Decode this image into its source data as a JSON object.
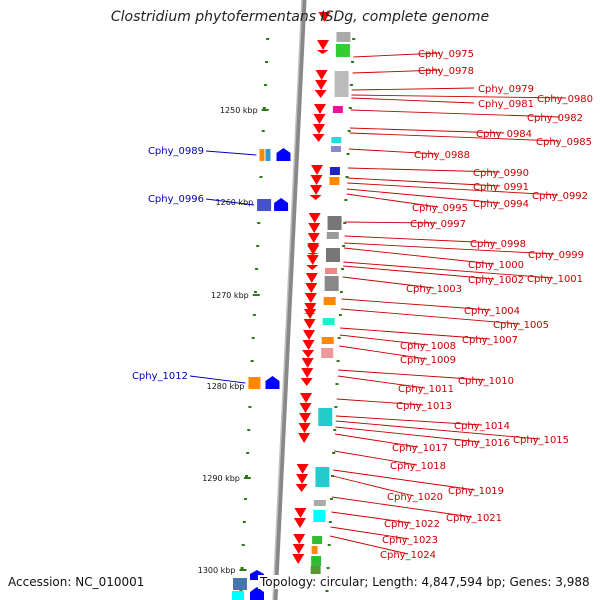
{
  "title": "Clostridium phytofermentans ISDg, complete genome",
  "footer": {
    "accession": "Accession: NC_010001",
    "topology": "Topology: circular; Length: 4,847,594 bp; Genes: 3,988"
  },
  "colors": {
    "cds_forward": "#ff0000",
    "annotation_forward": "#cc0000",
    "annotation_reverse": "#0000bb",
    "reverse_gene": "#0000ff",
    "backbone": "#808080",
    "tick": "#2a7a1a"
  },
  "scale_labels": [
    "1250 kbp",
    "1260 kbp",
    "1270 kbp",
    "1280 kbp",
    "1290 kbp",
    "1300 kbp"
  ],
  "forward_labels": [
    "Cphy_0975",
    "Cphy_0978",
    "Cphy_0979",
    "Cphy_0980",
    "Cphy_0981",
    "Cphy_0982",
    "Cphy_0984",
    "Cphy_0985",
    "Cphy_0988",
    "Cphy_0990",
    "Cphy_0991",
    "Cphy_0992",
    "Cphy_0994",
    "Cphy_0995",
    "Cphy_0997",
    "Cphy_0998",
    "Cphy_0999",
    "Cphy_1000",
    "Cphy_1001",
    "Cphy_1002",
    "Cphy_1003",
    "Cphy_1004",
    "Cphy_1005",
    "Cphy_1007",
    "Cphy_1008",
    "Cphy_1009",
    "Cphy_1010",
    "Cphy_1011",
    "Cphy_1013",
    "Cphy_1014",
    "Cphy_1015",
    "Cphy_1016",
    "Cphy_1017",
    "Cphy_1018",
    "Cphy_1019",
    "Cphy_1020",
    "Cphy_1021",
    "Cphy_1022",
    "Cphy_1023",
    "Cphy_1024"
  ],
  "reverse_labels": [
    "Cphy_0989",
    "Cphy_0996",
    "Cphy_1012"
  ]
}
